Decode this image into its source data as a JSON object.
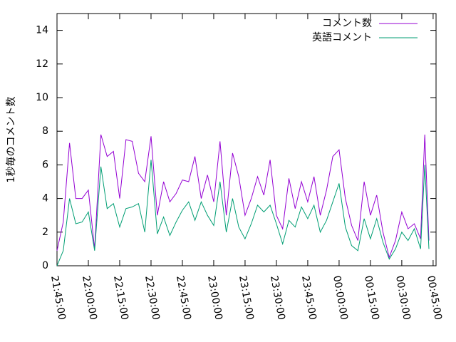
{
  "chart_data": {
    "type": "line",
    "ylabel": "1秒毎のコメント数",
    "x": [
      "21:45:00",
      "21:48:00",
      "21:51:00",
      "21:54:00",
      "21:57:00",
      "22:00:00",
      "22:03:00",
      "22:06:00",
      "22:09:00",
      "22:12:00",
      "22:15:00",
      "22:18:00",
      "22:21:00",
      "22:24:00",
      "22:27:00",
      "22:30:00",
      "22:33:00",
      "22:36:00",
      "22:39:00",
      "22:42:00",
      "22:45:00",
      "22:48:00",
      "22:51:00",
      "22:54:00",
      "22:57:00",
      "23:00:00",
      "23:03:00",
      "23:06:00",
      "23:09:00",
      "23:12:00",
      "23:15:00",
      "23:18:00",
      "23:21:00",
      "23:24:00",
      "23:27:00",
      "23:30:00",
      "23:33:00",
      "23:36:00",
      "23:39:00",
      "23:42:00",
      "23:45:00",
      "23:48:00",
      "23:51:00",
      "23:54:00",
      "23:57:00",
      "00:00:00",
      "00:03:00",
      "00:06:00",
      "00:09:00",
      "00:12:00",
      "00:15:00",
      "00:18:00",
      "00:21:00",
      "00:24:00",
      "00:27:00",
      "00:30:00",
      "00:33:00",
      "00:36:00",
      "00:39:00",
      "00:41:00",
      "00:43:00"
    ],
    "series": [
      {
        "name": "コメント数",
        "color": "#9400d3",
        "values": [
          0.9,
          2.6,
          7.3,
          4.0,
          4.0,
          4.5,
          1.0,
          7.8,
          6.5,
          6.8,
          4.0,
          7.5,
          7.4,
          5.5,
          5.0,
          7.7,
          3.0,
          5.0,
          3.8,
          4.3,
          5.1,
          5.0,
          6.5,
          4.0,
          5.4,
          3.8,
          7.4,
          3.0,
          6.7,
          5.3,
          3.0,
          4.0,
          5.3,
          4.2,
          6.3,
          3.0,
          2.2,
          5.2,
          3.4,
          5.0,
          3.8,
          5.3,
          3.0,
          4.5,
          6.5,
          6.9,
          4.0,
          2.4,
          1.5,
          5.0,
          3.0,
          4.2,
          2.0,
          0.5,
          1.5,
          3.2,
          2.2,
          2.5,
          1.6,
          7.8,
          1.5
        ]
      },
      {
        "name": "英語コメント",
        "color": "#009e73",
        "values": [
          0,
          0.9,
          4.0,
          2.5,
          2.6,
          3.2,
          0.9,
          5.9,
          3.4,
          3.7,
          2.3,
          3.4,
          3.5,
          3.7,
          2.0,
          6.3,
          1.9,
          2.9,
          1.8,
          2.6,
          3.3,
          3.8,
          2.7,
          3.8,
          3.0,
          2.4,
          5.0,
          2.0,
          4.0,
          2.3,
          1.6,
          2.5,
          3.6,
          3.2,
          3.6,
          2.5,
          1.3,
          2.7,
          2.3,
          3.5,
          2.8,
          3.6,
          2.0,
          2.7,
          3.8,
          4.9,
          2.3,
          1.2,
          0.9,
          2.8,
          1.6,
          2.8,
          1.4,
          0.4,
          1.0,
          2.0,
          1.5,
          2.2,
          1.0,
          6.0,
          1.0
        ]
      }
    ],
    "xlim": [
      "21:45:00",
      "00:46:24"
    ],
    "xticks": [
      "21:45:00",
      "22:00:00",
      "22:15:00",
      "22:30:00",
      "22:45:00",
      "23:00:00",
      "23:15:00",
      "23:30:00",
      "23:45:00",
      "00:00:00",
      "00:15:00",
      "00:30:00",
      "00:45:00"
    ],
    "ylim": [
      0,
      15
    ],
    "yticks": [
      0,
      2,
      4,
      6,
      8,
      10,
      12,
      14
    ],
    "legend": "top-right"
  }
}
